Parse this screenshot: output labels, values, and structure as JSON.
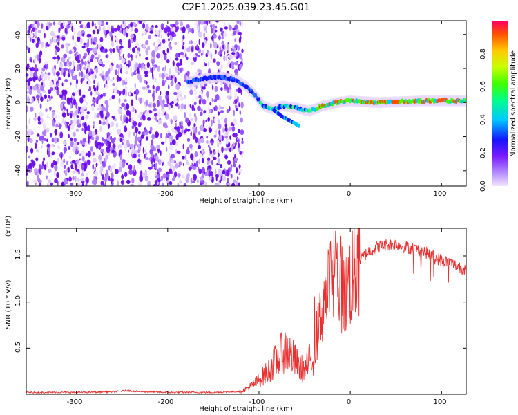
{
  "chart_data": [
    {
      "type": "heatmap",
      "title": "C2E1.2025.039.23.45.G01",
      "xlabel": "Height of straight line (km)",
      "ylabel": "Frequency (Hz)",
      "xlim": [
        -355,
        127
      ],
      "ylim": [
        -49,
        48
      ],
      "xticks": [
        "-300",
        "-200",
        "-100",
        "0",
        "100"
      ],
      "yticks": [
        "-40",
        "-20",
        "0",
        "20",
        "40"
      ],
      "colorbar": {
        "label": "Normalized spectral amplitude",
        "range": [
          0,
          1
        ],
        "ticks": [
          "0.0",
          "0.2",
          "0.4",
          "0.6",
          "0.8"
        ],
        "colors": [
          "#f2e6ff",
          "#b48cff",
          "#7a1aff",
          "#1414ff",
          "#00c8ff",
          "#00ff88",
          "#40ff00",
          "#c8ff00",
          "#ffc800",
          "#ff5000",
          "#ff0064"
        ]
      },
      "noise_region_x": [
        -355,
        -118
      ],
      "ridge": [
        {
          "x": -178,
          "y": 12
        },
        {
          "x": -160,
          "y": 14
        },
        {
          "x": -140,
          "y": 15
        },
        {
          "x": -125,
          "y": 13
        },
        {
          "x": -115,
          "y": 10
        },
        {
          "x": -105,
          "y": 5
        },
        {
          "x": -95,
          "y": -2
        },
        {
          "x": -85,
          "y": -4
        },
        {
          "x": -75,
          "y": -2
        },
        {
          "x": -60,
          "y": -3
        },
        {
          "x": -45,
          "y": -5
        },
        {
          "x": -30,
          "y": -2
        },
        {
          "x": -15,
          "y": 0
        },
        {
          "x": 0,
          "y": 1
        },
        {
          "x": 30,
          "y": 0
        },
        {
          "x": 80,
          "y": 1
        },
        {
          "x": 127,
          "y": 1
        }
      ],
      "branch": [
        {
          "x": -85,
          "y": -4
        },
        {
          "x": -75,
          "y": -8
        },
        {
          "x": -65,
          "y": -11
        },
        {
          "x": -55,
          "y": -14
        }
      ]
    },
    {
      "type": "line",
      "xlabel": "Height of straight line (km)",
      "ylabel": "SNR (10 * v/v)",
      "y_multiplier": "(x10⁴)",
      "xlim": [
        -355,
        127
      ],
      "ylim": [
        0,
        1.8
      ],
      "xticks": [
        "-300",
        "-200",
        "-100",
        "0",
        "100"
      ],
      "yticks": [
        "0.5",
        "1.0",
        "1.5"
      ],
      "line_color": "#e83030",
      "series": [
        {
          "x": [
            -355,
            -300,
            -260,
            -245,
            -235,
            -200,
            -150,
            -120,
            -110,
            -100,
            -90,
            -80,
            -70,
            -60,
            -50,
            -40,
            -35,
            -30,
            -25,
            -20,
            -15,
            -10,
            -5,
            0,
            10,
            20,
            30,
            40,
            50,
            60,
            70,
            80,
            90,
            100,
            110,
            120,
            127
          ],
          "values": [
            0.02,
            0.02,
            0.025,
            0.04,
            0.03,
            0.02,
            0.02,
            0.03,
            0.08,
            0.15,
            0.25,
            0.38,
            0.5,
            0.35,
            0.25,
            0.45,
            0.7,
            1.0,
            1.15,
            1.25,
            1.3,
            1.2,
            1.1,
            1.25,
            1.45,
            1.55,
            1.6,
            1.62,
            1.63,
            1.6,
            1.58,
            1.55,
            1.5,
            1.45,
            1.42,
            1.38,
            1.35
          ]
        }
      ]
    }
  ]
}
